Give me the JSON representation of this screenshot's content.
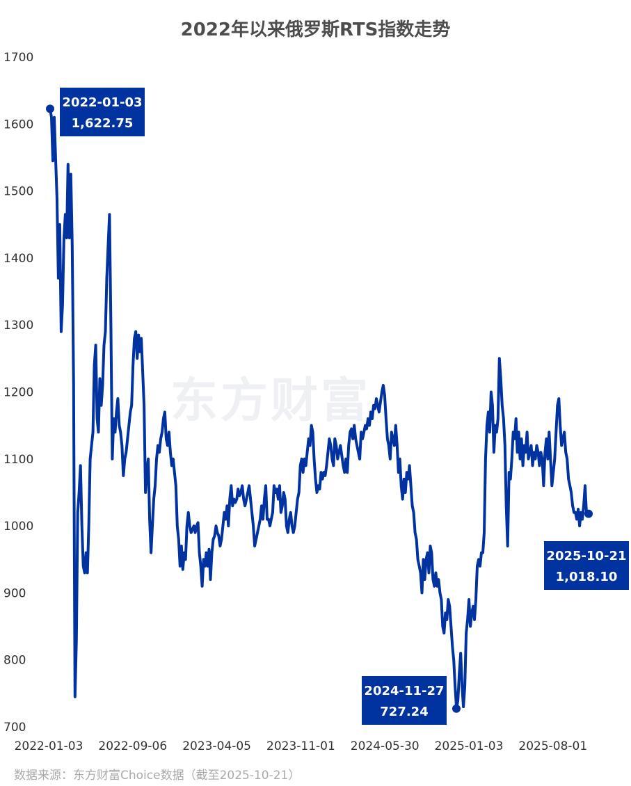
{
  "chart_data": {
    "type": "line",
    "title": "2022年以来俄罗斯RTS指数走势",
    "xlabel": "",
    "ylabel": "",
    "ylim": [
      700,
      1700
    ],
    "yticks": [
      "700",
      "800",
      "900",
      "1000",
      "1100",
      "1200",
      "1300",
      "1400",
      "1500",
      "1600",
      "1700"
    ],
    "xticks": [
      "2022-01-03",
      "2022-09-06",
      "2023-04-05",
      "2023-11-01",
      "2024-05-30",
      "2025-01-03",
      "2025-08-01"
    ],
    "x_range": [
      "2022-01-03",
      "2025-10-21"
    ],
    "grid": false,
    "color": "#0033a0",
    "series": [
      {
        "values": [
          1623,
          1610,
          1545,
          1610,
          1550,
          1490,
          1370,
          1450,
          1290,
          1330,
          1430,
          1465,
          1430,
          1540,
          1430,
          1525,
          1420,
          1210,
          745,
          830,
          1020,
          1050,
          1090,
          1000,
          940,
          930,
          960,
          930,
          1000,
          1100,
          1120,
          1140,
          1240,
          1270,
          1160,
          1140,
          1220,
          1180,
          1210,
          1270,
          1290,
          1370,
          1420,
          1465,
          1300,
          1100,
          1160,
          1140,
          1170,
          1190,
          1150,
          1140,
          1120,
          1075,
          1100,
          1110,
          1130,
          1150,
          1170,
          1180,
          1240,
          1280,
          1290,
          1250,
          1285,
          1260,
          1280,
          1230,
          1180,
          1050,
          1080,
          1100,
          1010,
          960,
          1000,
          1040,
          1060,
          1100,
          1120,
          1110,
          1130,
          1140,
          1160,
          1170,
          1130,
          1120,
          1140,
          1110,
          1090,
          1100,
          1080,
          1060,
          1000,
          980,
          940,
          970,
          935,
          960,
          950,
          1000,
          1020,
          1000,
          990,
          995,
          1000,
          990,
          1000,
          1005,
          960,
          940,
          910,
          950,
          940,
          960,
          940,
          965,
          920,
          960,
          980,
          985,
          1000,
          990,
          985,
          970,
          980,
          1000,
          1020,
          1010,
          1030,
          1000,
          1040,
          1060,
          1030,
          1040,
          1035,
          1040,
          1055,
          1045,
          1050,
          1060,
          1040,
          1030,
          1040,
          1050,
          1060,
          1040,
          1020,
          1000,
          970,
          980,
          990,
          1000,
          1010,
          1030,
          1010,
          1040,
          1060,
          1010,
          1010,
          1000,
          1010,
          1020,
          1060,
          1050,
          1055,
          1040,
          1060,
          1020,
          1030,
          1050,
          1040,
          1000,
          990,
          1010,
          1020,
          1000,
          990,
          1000,
          1020,
          1040,
          1050,
          1090,
          1100,
          1080,
          1100,
          1090,
          1110,
          1130,
          1120,
          1150,
          1140,
          1100,
          1070,
          1050,
          1060,
          1055,
          1080,
          1070,
          1080,
          1075,
          1090,
          1110,
          1130,
          1120,
          1100,
          1090,
          1130,
          1120,
          1100,
          1110,
          1120,
          1105,
          1090,
          1080,
          1100,
          1080,
          1120,
          1140,
          1145,
          1130,
          1150,
          1130,
          1120,
          1110,
          1100,
          1140,
          1130,
          1140,
          1150,
          1145,
          1160,
          1150,
          1170,
          1160,
          1180,
          1175,
          1190,
          1180,
          1170,
          1185,
          1200,
          1210,
          1195,
          1160,
          1130,
          1120,
          1100,
          1140,
          1130,
          1120,
          1150,
          1120,
          1080,
          1100,
          1060,
          1040,
          1070,
          1050,
          1080,
          1070,
          1090,
          1060,
          1030,
          1020,
          990,
          980,
          950,
          940,
          930,
          900,
          950,
          920,
          950,
          960,
          930,
          970,
          960,
          920,
          910,
          930,
          910,
          920,
          900,
          890,
          850,
          840,
          870,
          860,
          890,
          880,
          850,
          820,
          800,
          760,
          727.24,
          740,
          780,
          810,
          760,
          730,
          760,
          840,
          860,
          890,
          850,
          870,
          880,
          860,
          890,
          940,
          950,
          940,
          960,
          960,
          990,
          1100,
          1150,
          1170,
          1140,
          1200,
          1180,
          1110,
          1150,
          1140,
          1160,
          1250,
          1220,
          1180,
          1160,
          1120,
          1030,
          970,
          1080,
          1070,
          1100,
          1140,
          1130,
          1160,
          1110,
          1140,
          1100,
          1130,
          1090,
          1120,
          1110,
          1140,
          1100,
          1110,
          1120,
          1090,
          1110,
          1100,
          1120,
          1110,
          1090,
          1110,
          1100,
          1060,
          1110,
          1130,
          1100,
          1140,
          1100,
          1060,
          1080,
          1100,
          1140,
          1180,
          1190,
          1150,
          1120,
          1130,
          1140,
          1110,
          1100,
          1070,
          1060,
          1050,
          1030,
          1020,
          1020,
          1010,
          1025,
          1000,
          1020,
          1010,
          1030,
          1060,
          1018.1
        ]
      }
    ],
    "annotations": [
      {
        "date": "2022-01-03",
        "label": "1,622.75",
        "value": 1622.75
      },
      {
        "date": "2024-11-27",
        "label": "727.24",
        "value": 727.24
      },
      {
        "date": "2025-10-21",
        "label": "1,018.10",
        "value": 1018.1
      }
    ]
  },
  "watermark": "东方财富",
  "source": "数据来源：东方财富Choice数据（截至2025-10-21）"
}
